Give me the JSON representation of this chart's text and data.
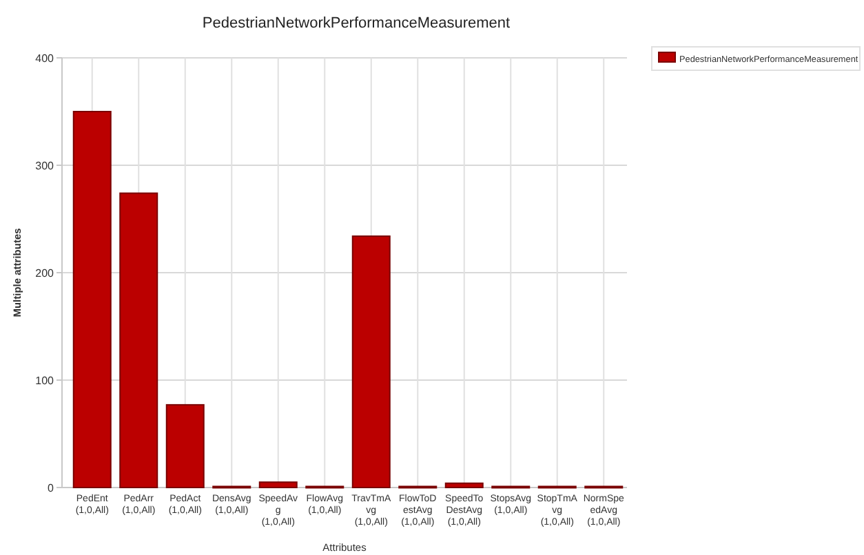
{
  "chart_data": {
    "type": "bar",
    "title": "PedestrianNetworkPerformanceMeasurement",
    "xlabel": "Attributes",
    "ylabel": "Multiple attributes",
    "categories": [
      "PedEnt (1,0,All)",
      "PedArr (1,0,All)",
      "PedAct (1,0,All)",
      "DensAvg (1,0,All)",
      "SpeedAvg(1,0,All)",
      "FlowAvg (1,0,All)",
      "TravTmAvg(1,0,All)",
      "FlowToDestAvg (1,0,All)",
      "SpeedToDestAvg (1,0,All)",
      "StopsAvg (1,0,All)",
      "StopTmAvg(1,0,All)",
      "NormSpeedAvg (1,0,All)"
    ],
    "series": [
      {
        "name": "PedestrianNetworkPerformanceMeasurement",
        "color": "#bb0000",
        "values": [
          350,
          274,
          77,
          1,
          5,
          1,
          234,
          1,
          4,
          1,
          1,
          1
        ]
      }
    ],
    "ylim": [
      0,
      400
    ],
    "yticks": [
      0,
      100,
      200,
      300,
      400
    ],
    "grid": true,
    "legend": "top right"
  }
}
